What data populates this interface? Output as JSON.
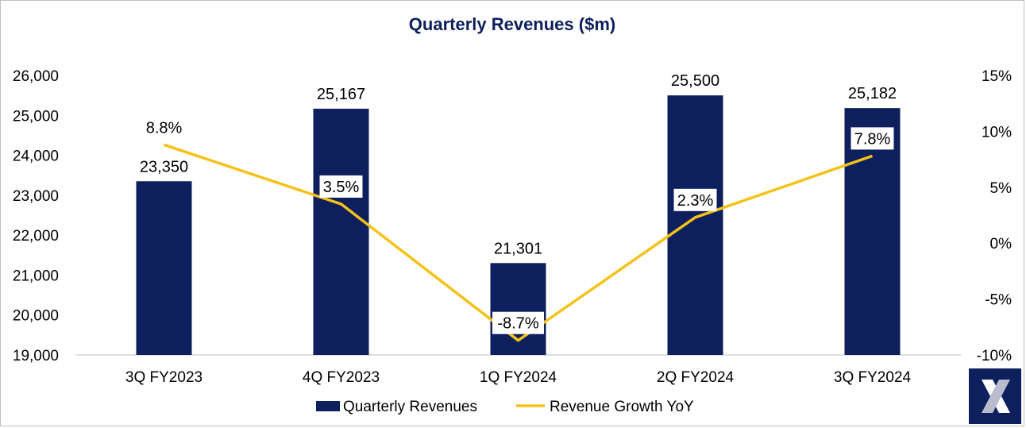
{
  "chart_data": {
    "type": "bar",
    "title": "Quarterly Revenues ($m)",
    "categories": [
      "3Q FY2023",
      "4Q FY2023",
      "1Q FY2024",
      "2Q FY2024",
      "3Q FY2024"
    ],
    "series": [
      {
        "name": "Quarterly Revenues",
        "kind": "bar",
        "axis": "left",
        "values": [
          23350,
          25167,
          21301,
          25500,
          25182
        ],
        "labels": [
          "23,350",
          "25,167",
          "21,301",
          "25,500",
          "25,182"
        ]
      },
      {
        "name": "Revenue Growth YoY",
        "kind": "line",
        "axis": "right",
        "values": [
          8.8,
          3.5,
          -8.7,
          2.3,
          7.8
        ],
        "labels": [
          "8.8%",
          "3.5%",
          "-8.7%",
          "2.3%",
          "7.8%"
        ]
      }
    ],
    "y_left": {
      "min": 19000,
      "max": 26000,
      "ticks": [
        19000,
        20000,
        21000,
        22000,
        23000,
        24000,
        25000,
        26000
      ],
      "tick_labels": [
        "19,000",
        "20,000",
        "21,000",
        "22,000",
        "23,000",
        "24,000",
        "25,000",
        "26,000"
      ]
    },
    "y_right": {
      "min": -10,
      "max": 15,
      "ticks": [
        -10,
        -5,
        0,
        5,
        10,
        15
      ],
      "tick_labels": [
        "-10%",
        "-5%",
        "0%",
        "5%",
        "10%",
        "15%"
      ]
    },
    "xlabel": "",
    "ylabel": "",
    "legend_position": "bottom",
    "grid": false
  },
  "colors": {
    "bar": "#0d1f5c",
    "line": "#f5c218",
    "title": "#0d1f5c",
    "axis": "#bfbfbf",
    "logo_bg": "#0d1f5c"
  },
  "logo_icon": "x-logo-icon"
}
